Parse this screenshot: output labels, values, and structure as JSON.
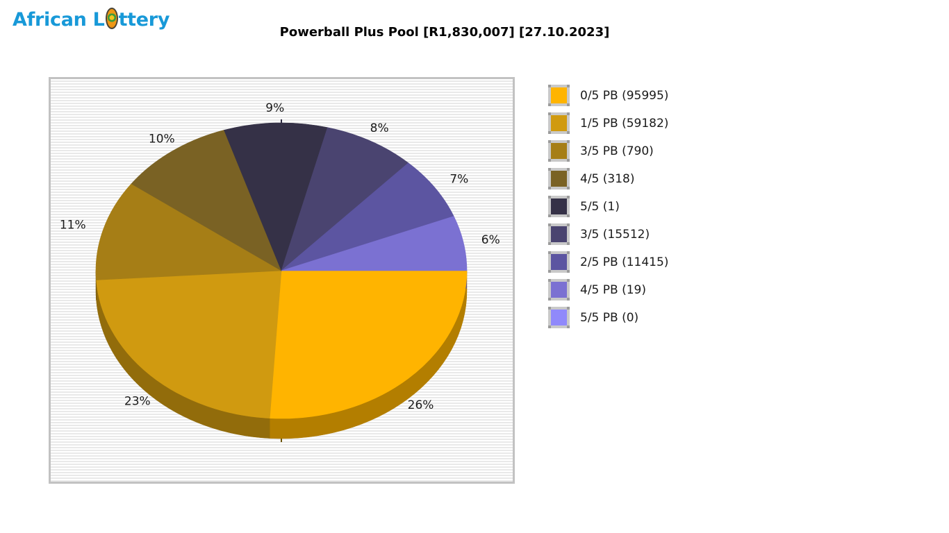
{
  "header": {
    "logo": {
      "text": "African Lottery",
      "prefix": "African L",
      "suffix": "ttery",
      "color": "#1899D8"
    },
    "title": "Powerball Plus Pool [R1,830,007] [27.10.2023]"
  },
  "chart_data": {
    "type": "pie",
    "style": "3d",
    "title": "Powerball Plus Pool [R1,830,007] [27.10.2023]",
    "start_angle_deg": 0,
    "direction": "clockwise",
    "legend_position": "right",
    "grid": "striped-horizontal",
    "slices": [
      {
        "label": "0/5 PB",
        "count": 95995,
        "percent": 26,
        "color": "#FFB400"
      },
      {
        "label": "1/5 PB",
        "count": 59182,
        "percent": 23,
        "color": "#D09A10"
      },
      {
        "label": "3/5 PB",
        "count": 790,
        "percent": 11,
        "color": "#A67E16"
      },
      {
        "label": "4/5",
        "count": 318,
        "percent": 10,
        "color": "#7A6224"
      },
      {
        "label": "5/5",
        "count": 1,
        "percent": 9,
        "color": "#353147"
      },
      {
        "label": "3/5",
        "count": 15512,
        "percent": 8,
        "color": "#4A4470"
      },
      {
        "label": "2/5 PB",
        "count": 11415,
        "percent": 7,
        "color": "#5C55A1"
      },
      {
        "label": "4/5 PB",
        "count": 19,
        "percent": 6,
        "color": "#7B71D2"
      },
      {
        "label": "5/5 PB",
        "count": 0,
        "percent": 0,
        "color": "#9089FB"
      }
    ]
  }
}
